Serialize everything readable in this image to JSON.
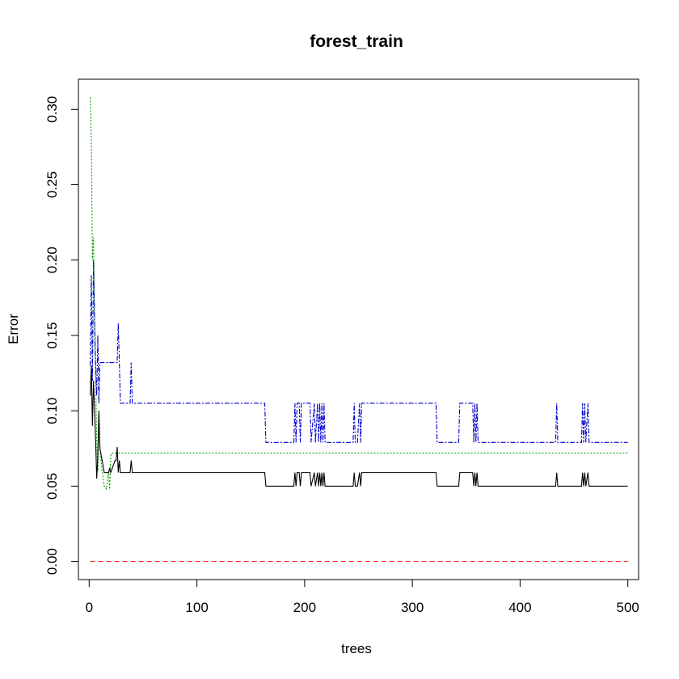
{
  "chart_data": {
    "type": "line",
    "title": "forest_train",
    "xlabel": "trees",
    "ylabel": "Error",
    "xlim": [
      -10,
      510
    ],
    "ylim": [
      -0.012,
      0.32
    ],
    "xticks": [
      0,
      100,
      200,
      300,
      400,
      500
    ],
    "xtick_labels": [
      "0",
      "100",
      "200",
      "300",
      "400",
      "500"
    ],
    "yticks": [
      0.0,
      0.05,
      0.1,
      0.15,
      0.2,
      0.25,
      0.3
    ],
    "ytick_labels": [
      "0.00",
      "0.05",
      "0.10",
      "0.15",
      "0.20",
      "0.25",
      "0.30"
    ],
    "grid": false,
    "legend": "none",
    "series": [
      {
        "color": "#ff0000",
        "dash": "6,4",
        "x": [
          1,
          500
        ],
        "y": [
          0.0,
          0.0
        ]
      },
      {
        "color": "#00a000",
        "dash": "2,2",
        "x": [
          1,
          2,
          3,
          4,
          5,
          6,
          7,
          8,
          9,
          10,
          12,
          14,
          16,
          18,
          19,
          20,
          21,
          25,
          500
        ],
        "y": [
          0.308,
          0.28,
          0.2,
          0.215,
          0.16,
          0.12,
          0.08,
          0.06,
          0.09,
          0.075,
          0.06,
          0.05,
          0.048,
          0.06,
          0.048,
          0.07,
          0.072,
          0.072,
          0.072
        ]
      },
      {
        "color": "#0000cc",
        "dash": "6,2,2,2",
        "x": [
          1,
          2,
          3,
          4,
          5,
          6,
          7,
          8,
          9,
          10,
          12,
          20,
          26,
          27,
          28,
          29,
          30,
          31,
          38,
          39,
          40,
          41,
          163,
          164,
          190,
          191,
          192,
          193,
          195,
          196,
          197,
          205,
          206,
          209,
          210,
          212,
          213,
          214,
          215,
          216,
          217,
          218,
          219,
          220,
          245,
          246,
          247,
          249,
          251,
          252,
          253,
          255,
          322,
          323,
          343,
          344,
          356,
          357,
          358,
          359,
          360,
          361,
          433,
          434,
          435,
          436,
          457,
          458,
          459,
          460,
          461,
          463,
          464,
          465,
          500
        ],
        "y": [
          0.13,
          0.19,
          0.12,
          0.2,
          0.16,
          0.13,
          0.11,
          0.15,
          0.105,
          0.132,
          0.132,
          0.132,
          0.132,
          0.158,
          0.132,
          0.105,
          0.105,
          0.105,
          0.105,
          0.132,
          0.105,
          0.105,
          0.105,
          0.079,
          0.079,
          0.105,
          0.079,
          0.105,
          0.105,
          0.079,
          0.105,
          0.105,
          0.079,
          0.105,
          0.079,
          0.105,
          0.079,
          0.105,
          0.079,
          0.105,
          0.079,
          0.105,
          0.079,
          0.079,
          0.079,
          0.105,
          0.079,
          0.079,
          0.105,
          0.079,
          0.105,
          0.105,
          0.105,
          0.079,
          0.079,
          0.105,
          0.105,
          0.079,
          0.105,
          0.079,
          0.105,
          0.079,
          0.079,
          0.105,
          0.079,
          0.079,
          0.079,
          0.105,
          0.079,
          0.105,
          0.079,
          0.105,
          0.079,
          0.079,
          0.079
        ]
      },
      {
        "color": "#000000",
        "dash": "",
        "x": [
          1,
          2,
          3,
          4,
          5,
          6,
          7,
          8,
          9,
          10,
          12,
          14,
          16,
          18,
          19,
          20,
          24,
          25,
          26,
          27,
          28,
          29,
          30,
          31,
          38,
          39,
          40,
          41,
          163,
          164,
          190,
          191,
          192,
          193,
          195,
          196,
          197,
          205,
          206,
          209,
          210,
          212,
          213,
          214,
          215,
          216,
          217,
          218,
          219,
          220,
          245,
          246,
          247,
          249,
          251,
          252,
          253,
          255,
          322,
          323,
          343,
          344,
          356,
          357,
          358,
          359,
          360,
          361,
          433,
          434,
          435,
          436,
          457,
          458,
          459,
          460,
          461,
          463,
          464,
          465,
          500
        ],
        "y": [
          0.11,
          0.13,
          0.09,
          0.12,
          0.1,
          0.08,
          0.055,
          0.07,
          0.1,
          0.075,
          0.067,
          0.059,
          0.059,
          0.059,
          0.062,
          0.059,
          0.067,
          0.067,
          0.076,
          0.059,
          0.067,
          0.059,
          0.059,
          0.059,
          0.059,
          0.067,
          0.059,
          0.059,
          0.059,
          0.05,
          0.05,
          0.059,
          0.05,
          0.059,
          0.059,
          0.05,
          0.059,
          0.059,
          0.05,
          0.059,
          0.05,
          0.059,
          0.05,
          0.059,
          0.05,
          0.059,
          0.05,
          0.059,
          0.05,
          0.05,
          0.05,
          0.059,
          0.05,
          0.05,
          0.059,
          0.05,
          0.059,
          0.059,
          0.059,
          0.05,
          0.05,
          0.059,
          0.059,
          0.05,
          0.059,
          0.05,
          0.059,
          0.05,
          0.05,
          0.059,
          0.05,
          0.05,
          0.05,
          0.059,
          0.05,
          0.059,
          0.05,
          0.059,
          0.05,
          0.05,
          0.05
        ]
      }
    ]
  }
}
